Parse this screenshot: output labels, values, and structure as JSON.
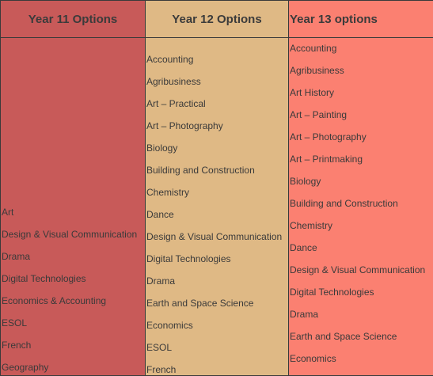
{
  "columns": [
    {
      "heading": "Year 11 Options",
      "subjects": [
        "Art",
        "Design & Visual Communication",
        "Drama",
        "Digital Technologies",
        "Economics & Accounting",
        "ESOL",
        "French",
        "Geography"
      ]
    },
    {
      "heading": "Year 12 Options",
      "subjects": [
        "Accounting",
        "Agribusiness",
        "Art – Practical",
        "Art – Photography",
        "Biology",
        "Building and Construction",
        "Chemistry",
        "Dance",
        "Design & Visual Communication",
        "Digital Technologies",
        "Drama",
        "Earth and Space Science",
        "Economics",
        "ESOL",
        "French"
      ]
    },
    {
      "heading": "Year 13 options",
      "subjects": [
        "Accounting",
        "Agribusiness",
        "Art History",
        "Art – Painting",
        "Art – Photography",
        "Art – Printmaking",
        "Biology",
        "Building and Construction",
        "Chemistry",
        "Dance",
        "Design & Visual Communication",
        "Digital Technologies",
        "Drama",
        "Earth and Space Science",
        "Economics"
      ]
    }
  ],
  "colors": {
    "year11": "#c85a59",
    "year12": "#dfb985",
    "year13": "#fb8071",
    "border": "#3a3a3a",
    "text": "#3a3a3a"
  }
}
